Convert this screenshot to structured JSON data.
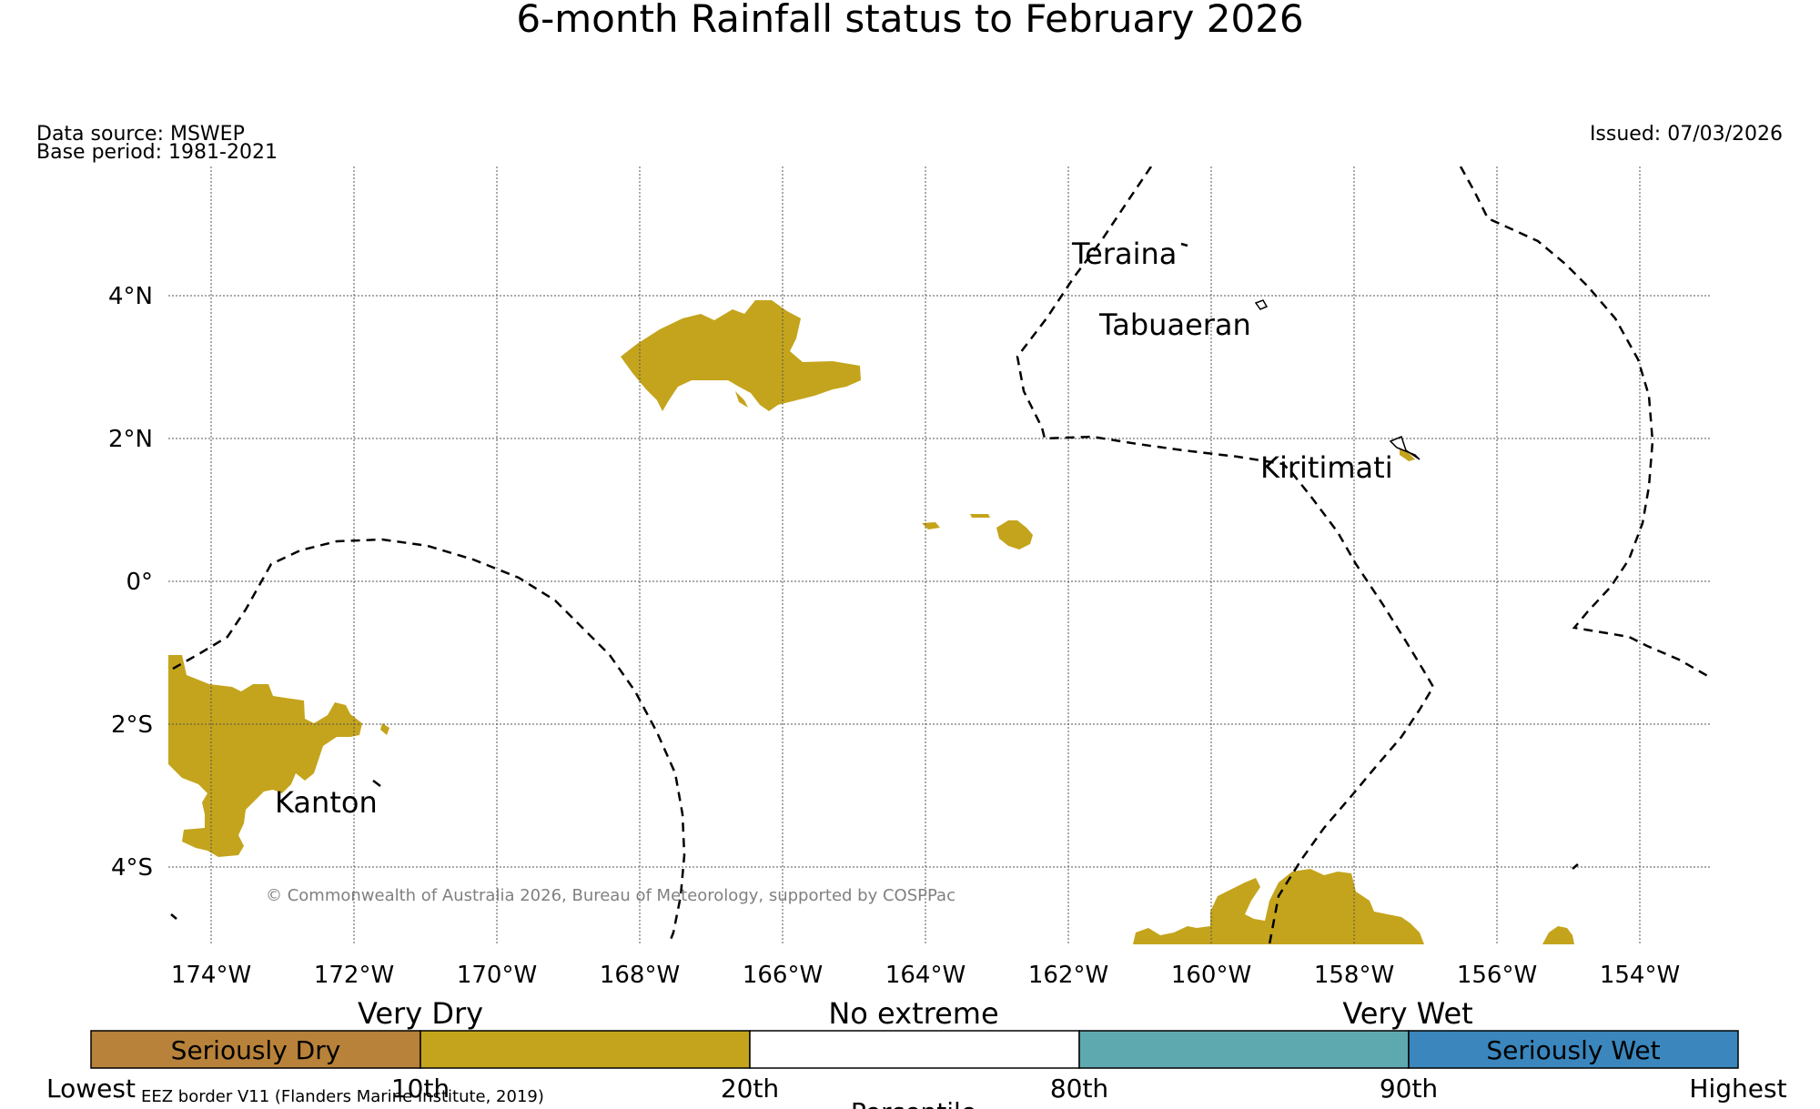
{
  "title": "6-month Rainfall status to February 2026",
  "data_source": "Data source: MSWEP",
  "base_period": "Base period: 1981-2021",
  "issued": "Issued: 07/03/2026",
  "copyright": "© Commonwealth of Australia 2026, Bureau of Meteorology, supported by COSPPac",
  "eez_note": "EEZ border V11 (Flanders Marine Institute, 2019)",
  "lat_labels": [
    "4°N",
    "2°N",
    "0°",
    "2°S",
    "4°S"
  ],
  "lon_labels": [
    "174°W",
    "172°W",
    "170°W",
    "168°W",
    "166°W",
    "164°W",
    "162°W",
    "160°W",
    "158°W",
    "156°W",
    "154°W"
  ],
  "places": {
    "teraina": "Teraina",
    "tabuaeran": "Tabuaeran",
    "kiritimati": "Kiritimati",
    "kanton": "Kanton"
  },
  "legend": {
    "groups": {
      "very_dry": "Very Dry",
      "no_extreme": "No extreme",
      "very_wet": "Very Wet"
    },
    "segments": [
      {
        "label": "Seriously Dry",
        "color": "#b8823a"
      },
      {
        "label": "",
        "color": "#c4a41c"
      },
      {
        "label": "",
        "color": "#ffffff"
      },
      {
        "label": "",
        "color": "#5ea9b0"
      },
      {
        "label": "Seriously Wet",
        "color": "#3a86bd"
      }
    ],
    "ticks": [
      "Lowest",
      "10th",
      "20th",
      "80th",
      "90th",
      "Highest"
    ],
    "axis_label": "Percentile"
  },
  "colors": {
    "very_dry": "#c4a41c",
    "eez_line": "#000000",
    "grid": "#555555"
  }
}
